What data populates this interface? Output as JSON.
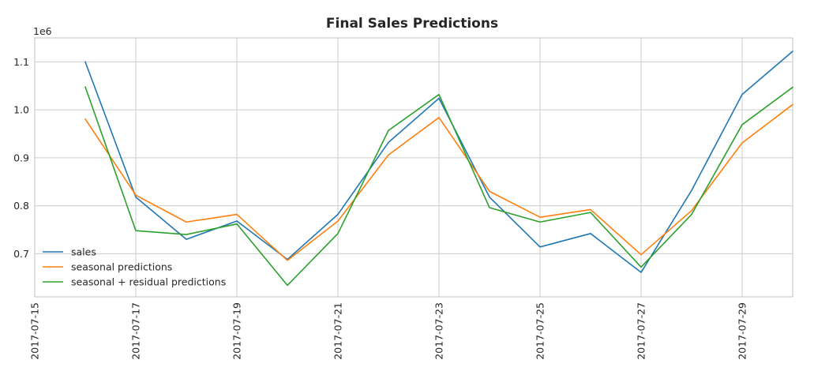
{
  "chart_data": {
    "type": "line",
    "title": "Final Sales Predictions",
    "xlabel": "",
    "ylabel": "",
    "y_offset_label": "1e6",
    "x": [
      "2017-07-16",
      "2017-07-17",
      "2017-07-18",
      "2017-07-19",
      "2017-07-20",
      "2017-07-21",
      "2017-07-22",
      "2017-07-23",
      "2017-07-24",
      "2017-07-25",
      "2017-07-26",
      "2017-07-27",
      "2017-07-28",
      "2017-07-29",
      "2017-07-30"
    ],
    "x_ticks": [
      "2017-07-15",
      "2017-07-17",
      "2017-07-19",
      "2017-07-21",
      "2017-07-23",
      "2017-07-25",
      "2017-07-27",
      "2017-07-29"
    ],
    "xlim": [
      "2017-07-15",
      "2017-07-30"
    ],
    "y_ticks": [
      "0.7",
      "0.8",
      "0.9",
      "1.0",
      "1.1"
    ],
    "ylim": [
      0.61,
      1.15
    ],
    "grid": true,
    "legend_position": "lower-left",
    "series": [
      {
        "name": "sales",
        "color": "#1f77b4",
        "values": [
          1.1,
          0.818,
          0.73,
          0.768,
          0.688,
          0.782,
          0.932,
          1.024,
          0.818,
          0.714,
          0.742,
          0.661,
          0.832,
          1.032,
          1.122
        ]
      },
      {
        "name": "seasonal predictions",
        "color": "#ff7f0e",
        "values": [
          0.981,
          0.822,
          0.766,
          0.782,
          0.686,
          0.768,
          0.906,
          0.984,
          0.83,
          0.776,
          0.792,
          0.698,
          0.79,
          0.931,
          1.011
        ]
      },
      {
        "name": "seasonal + residual predictions",
        "color": "#2ca02c",
        "values": [
          1.048,
          0.748,
          0.74,
          0.762,
          0.634,
          0.742,
          0.957,
          1.032,
          0.796,
          0.766,
          0.786,
          0.672,
          0.782,
          0.969,
          1.047
        ]
      }
    ]
  }
}
